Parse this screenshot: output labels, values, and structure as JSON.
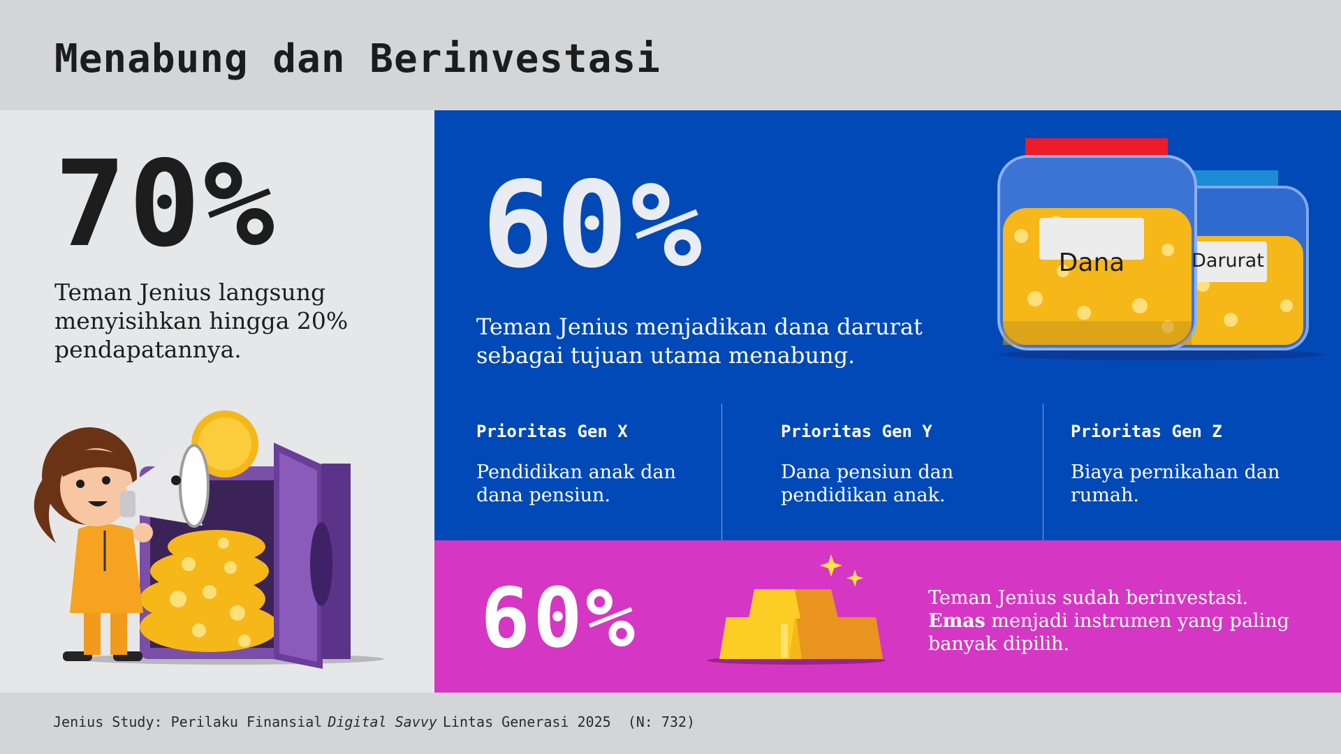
{
  "header": {
    "title": "Menabung dan Berinvestasi"
  },
  "saving": {
    "stat": "70%",
    "description": "Teman Jenius langsung menyisihkan hingga 20% pendapatannya."
  },
  "emergency": {
    "stat": "60%",
    "description": "Teman Jenius menjadikan dana darurat sebagai tujuan utama menabung.",
    "jar_labels": [
      "Dana",
      "Darurat"
    ]
  },
  "priorities": [
    {
      "title": "Prioritas Gen X",
      "text": "Pendidikan anak dan dana pensiun."
    },
    {
      "title": "Prioritas Gen Y",
      "text": "Dana pensiun dan pendidikan anak."
    },
    {
      "title": "Prioritas Gen Z",
      "text": "Biaya pernikahan dan rumah."
    }
  ],
  "investing": {
    "stat": "60%",
    "description_line1": "Teman Jenius sudah berinvestasi.",
    "description_bold": "Emas",
    "description_rest": " menjadi instrumen yang paling banyak dipilih."
  },
  "footer": {
    "source_prefix": "Jenius Study: Perilaku Finansial",
    "source_italic": "Digital Savvy",
    "source_suffix": "Lintas Generasi 2025",
    "sample": "(N: 732)"
  },
  "colors": {
    "blue": "#0049b6",
    "pink": "#d636c4",
    "gray": "#d4d5d7",
    "gold": "#f7c325",
    "purple": "#6a3d9a"
  }
}
